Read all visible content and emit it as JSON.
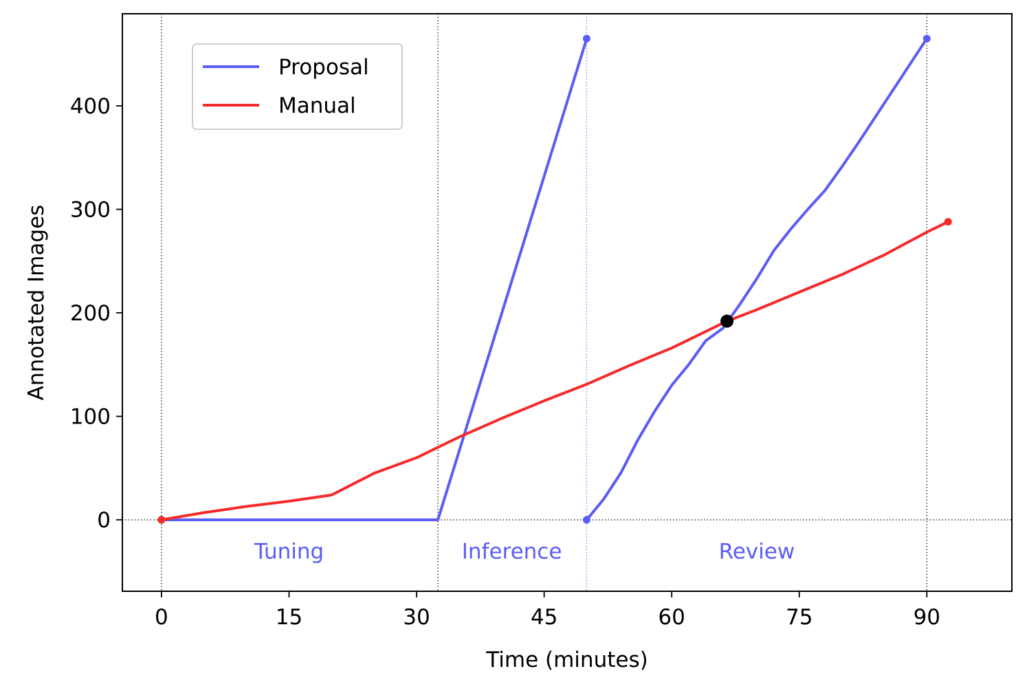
{
  "chart_data": {
    "type": "line",
    "xlabel": "Time (minutes)",
    "ylabel": "Annotated Images",
    "xlim": [
      -4.6,
      100.0
    ],
    "ylim": [
      -69,
      489
    ],
    "xticks": [
      0,
      15,
      30,
      45,
      60,
      75,
      90
    ],
    "yticks": [
      0,
      100,
      200,
      300,
      400
    ],
    "grid": false,
    "legend_position": "top-left",
    "series": [
      {
        "name": "Proposal",
        "color": "#5a5cf5",
        "segments": [
          {
            "x": [
              0,
              32.5,
              50.0
            ],
            "y": [
              0,
              0,
              465
            ]
          },
          {
            "x": [
              50.0,
              52.0,
              54.0,
              56.0,
              58.0,
              60.0,
              62.0,
              64.0,
              66.0,
              68.0,
              70.0,
              72.0,
              74.0,
              76.0,
              78.0,
              80.0,
              82.0,
              84.0,
              86.0,
              88.0,
              90.0
            ],
            "y": [
              0,
              20,
              45,
              77,
              105,
              130,
              150,
              173,
              185,
              208,
              233,
              260,
              281,
              300,
              318,
              341,
              365,
              390,
              415,
              440,
              465
            ]
          }
        ]
      },
      {
        "name": "Manual",
        "color": "#f52a2a",
        "segments": [
          {
            "x": [
              0,
              5,
              10,
              15,
              20,
              25,
              30,
              35,
              40,
              45,
              50,
              55,
              60,
              66.5,
              70,
              75,
              80,
              85,
              90,
              92.5
            ],
            "y": [
              0,
              7,
              13,
              18,
              24,
              45,
              60,
              80,
              98,
              115,
              131,
              149,
              166,
              192,
              203,
              220,
              237,
              256,
              278,
              288
            ]
          }
        ]
      }
    ],
    "markers": [
      {
        "x": 66.5,
        "y": 192,
        "color": "#000000"
      }
    ],
    "annotations": [
      {
        "text": "Tuning",
        "x": 15.0,
        "y": -30
      },
      {
        "text": "Inference",
        "x": 41.2,
        "y": -30
      },
      {
        "text": "Review",
        "x": 70.0,
        "y": -30
      }
    ],
    "vlines": [
      {
        "x": 0,
        "color": "#000000"
      },
      {
        "x": 32.5,
        "color": "#000000"
      },
      {
        "x": 50.0,
        "color": "#5a5cf5"
      },
      {
        "x": 90.0,
        "color": "#000000"
      }
    ],
    "hlines": [
      {
        "y": 0,
        "color": "#000000"
      }
    ]
  }
}
